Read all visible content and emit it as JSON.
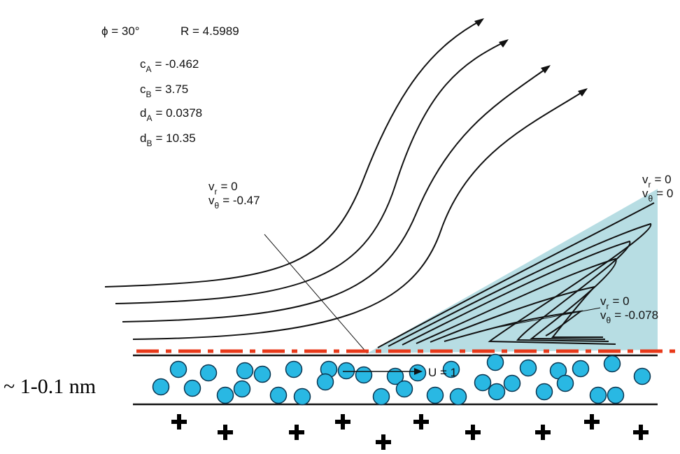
{
  "parameters": {
    "phi": "ϕ = 30°",
    "R": "R = 4.5989",
    "items": [
      {
        "symbol": "c",
        "subscript": "A",
        "value": "= -0.462"
      },
      {
        "symbol": "c",
        "subscript": "B",
        "value": "= 3.75"
      },
      {
        "symbol": "d",
        "subscript": "A",
        "value": "= 0.0378"
      },
      {
        "symbol": "d",
        "subscript": "B",
        "value": "= 10.35"
      }
    ]
  },
  "annotations": [
    {
      "lines": [
        {
          "symbol": "v",
          "subscript": "r",
          "value": "= 0"
        },
        {
          "symbol": "v",
          "subscript": "θ",
          "value": "= -0.47"
        }
      ]
    },
    {
      "lines": [
        {
          "symbol": "v",
          "subscript": "r",
          "value": "= 0"
        },
        {
          "symbol": "v",
          "subscript": "θ",
          "value": "= 0"
        }
      ]
    },
    {
      "lines": [
        {
          "symbol": "v",
          "subscript": "r",
          "value": "= 0"
        },
        {
          "symbol": "v",
          "subscript": "θ",
          "value": "= -0.078"
        }
      ]
    }
  ],
  "velocity_label": "U = 1",
  "thickness_label": "~ 1-0.1 nm"
}
